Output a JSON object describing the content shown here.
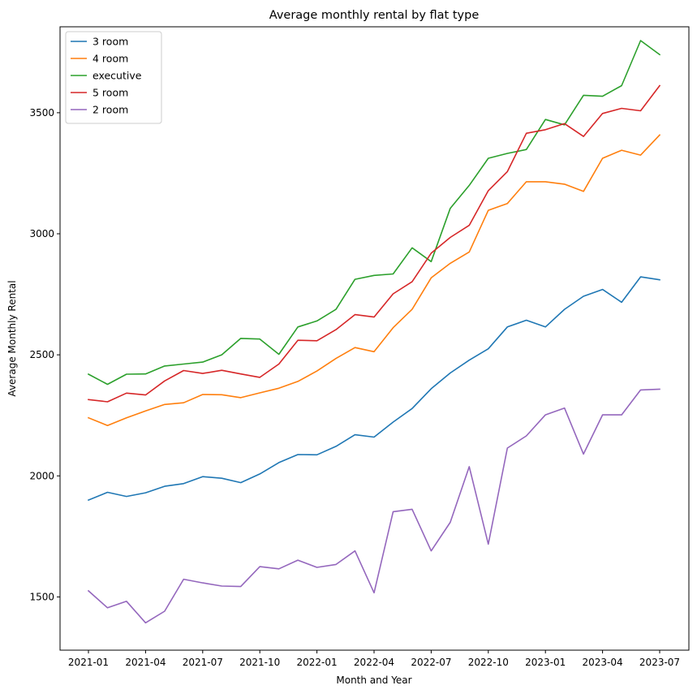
{
  "chart_data": {
    "type": "line",
    "title": "Average monthly rental by flat type",
    "xlabel": "Month and Year",
    "ylabel": "Average Monthly Rental",
    "x": [
      "2021-01",
      "2021-02",
      "2021-03",
      "2021-04",
      "2021-05",
      "2021-06",
      "2021-07",
      "2021-08",
      "2021-09",
      "2021-10",
      "2021-11",
      "2021-12",
      "2022-01",
      "2022-02",
      "2022-03",
      "2022-04",
      "2022-05",
      "2022-06",
      "2022-07",
      "2022-08",
      "2022-09",
      "2022-10",
      "2022-11",
      "2022-12",
      "2023-01",
      "2023-02",
      "2023-03",
      "2023-04",
      "2023-05",
      "2023-06",
      "2023-07"
    ],
    "x_ticks": [
      "2021-01",
      "2021-04",
      "2021-07",
      "2021-10",
      "2022-01",
      "2022-04",
      "2022-07",
      "2022-10",
      "2023-01",
      "2023-04",
      "2023-07"
    ],
    "y_ticks": [
      1500,
      2000,
      2500,
      3000,
      3500
    ],
    "ylim": [
      1280,
      3855
    ],
    "grid": false,
    "legend_position": "top-left",
    "series": [
      {
        "name": "3 room",
        "color": "#1f77b4",
        "values": [
          1900,
          1932,
          1915,
          1930,
          1957,
          1968,
          1997,
          1990,
          1972,
          2008,
          2055,
          2088,
          2087,
          2122,
          2170,
          2160,
          2222,
          2278,
          2360,
          2425,
          2478,
          2525,
          2615,
          2643,
          2615,
          2688,
          2742,
          2770,
          2717,
          2822,
          2810
        ]
      },
      {
        "name": "4 room",
        "color": "#ff7f0e",
        "values": [
          2240,
          2208,
          2240,
          2268,
          2295,
          2302,
          2336,
          2335,
          2323,
          2343,
          2362,
          2390,
          2433,
          2485,
          2530,
          2513,
          2612,
          2688,
          2818,
          2878,
          2925,
          3097,
          3125,
          3215,
          3215,
          3205,
          3175,
          3312,
          3345,
          3325,
          3408
        ]
      },
      {
        "name": "executive",
        "color": "#2ca02c",
        "values": [
          2420,
          2378,
          2420,
          2421,
          2454,
          2462,
          2470,
          2500,
          2568,
          2565,
          2502,
          2615,
          2640,
          2688,
          2812,
          2828,
          2834,
          2942,
          2885,
          3105,
          3200,
          3312,
          3332,
          3348,
          3472,
          3450,
          3572,
          3568,
          3612,
          3798,
          3740
        ]
      },
      {
        "name": "5 room",
        "color": "#d62728",
        "values": [
          2315,
          2306,
          2342,
          2334,
          2392,
          2435,
          2423,
          2436,
          2421,
          2407,
          2462,
          2560,
          2558,
          2604,
          2666,
          2656,
          2752,
          2802,
          2920,
          2985,
          3035,
          3178,
          3257,
          3415,
          3430,
          3455,
          3402,
          3497,
          3518,
          3508,
          3612
        ]
      },
      {
        "name": "2 room",
        "color": "#9467bd",
        "values": [
          1525,
          1455,
          1482,
          1393,
          1441,
          1573,
          1558,
          1545,
          1543,
          1625,
          1616,
          1652,
          1622,
          1634,
          1690,
          1517,
          1852,
          1862,
          1690,
          1808,
          2038,
          1718,
          2115,
          2165,
          2252,
          2280,
          2090,
          2252,
          2252,
          2355,
          2358
        ]
      }
    ]
  }
}
